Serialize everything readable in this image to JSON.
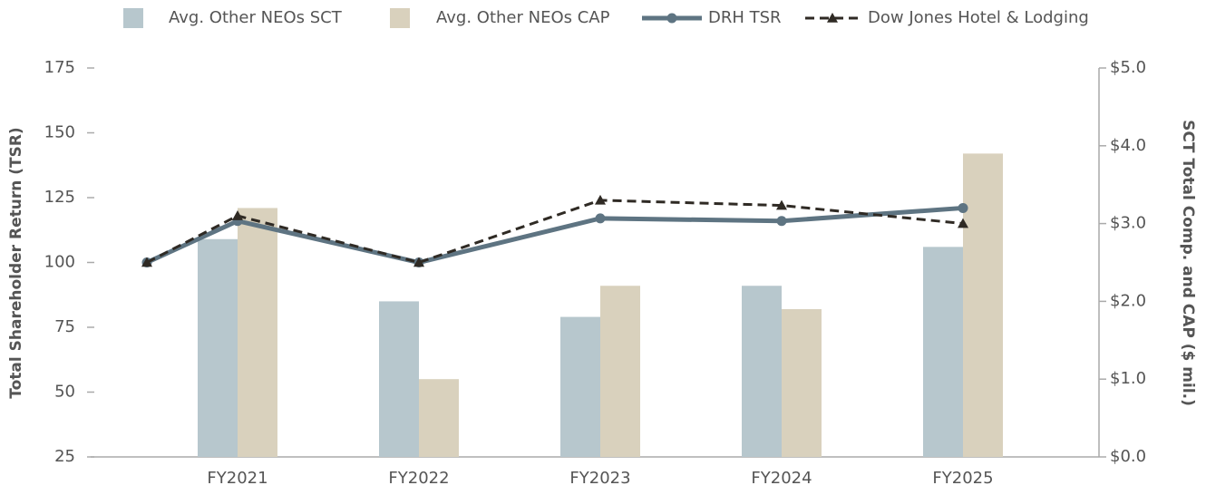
{
  "chart_data": {
    "type": "combo",
    "categories": [
      null,
      "FY2021",
      "FY2022",
      "FY2023",
      "FY2024",
      "FY2025"
    ],
    "series": [
      {
        "name": "Avg. Other NEOs SCT",
        "type": "bar",
        "axis": "y2",
        "color": "#b7c7cd",
        "values": [
          null,
          2.8,
          2.0,
          1.8,
          2.2,
          2.7
        ]
      },
      {
        "name": "Avg. Other NEOs CAP",
        "type": "bar",
        "axis": "y2",
        "color": "#d9d1bd",
        "values": [
          null,
          3.2,
          1.0,
          2.2,
          1.9,
          3.9
        ]
      },
      {
        "name": "DRH TSR",
        "type": "line",
        "marker": "circle",
        "color": "#5e7482",
        "values": [
          100,
          116,
          100,
          117,
          116,
          121
        ]
      },
      {
        "name": "Dow Jones Hotel & Lodging",
        "type": "line",
        "marker": "triangle",
        "dashed": true,
        "color": "#2f2a24",
        "values": [
          100,
          118,
          100,
          124,
          122,
          115
        ]
      }
    ],
    "y_label": "Total Shareholder Return (TSR)",
    "y2_label": "SCT Total Comp. and CAP ($ mil.)",
    "ylim": [
      25,
      175
    ],
    "yticks": [
      25,
      50,
      75,
      100,
      125,
      150,
      175
    ],
    "y2lim": [
      0,
      5
    ],
    "y2ticks": [
      {
        "value": 0,
        "label": "$0.0"
      },
      {
        "value": 1,
        "label": "$1.0"
      },
      {
        "value": 2,
        "label": "$2.0"
      },
      {
        "value": 3,
        "label": "$3.0"
      },
      {
        "value": 4,
        "label": "$4.0"
      },
      {
        "value": 5,
        "label": "$5.0"
      }
    ],
    "legend": "top"
  }
}
